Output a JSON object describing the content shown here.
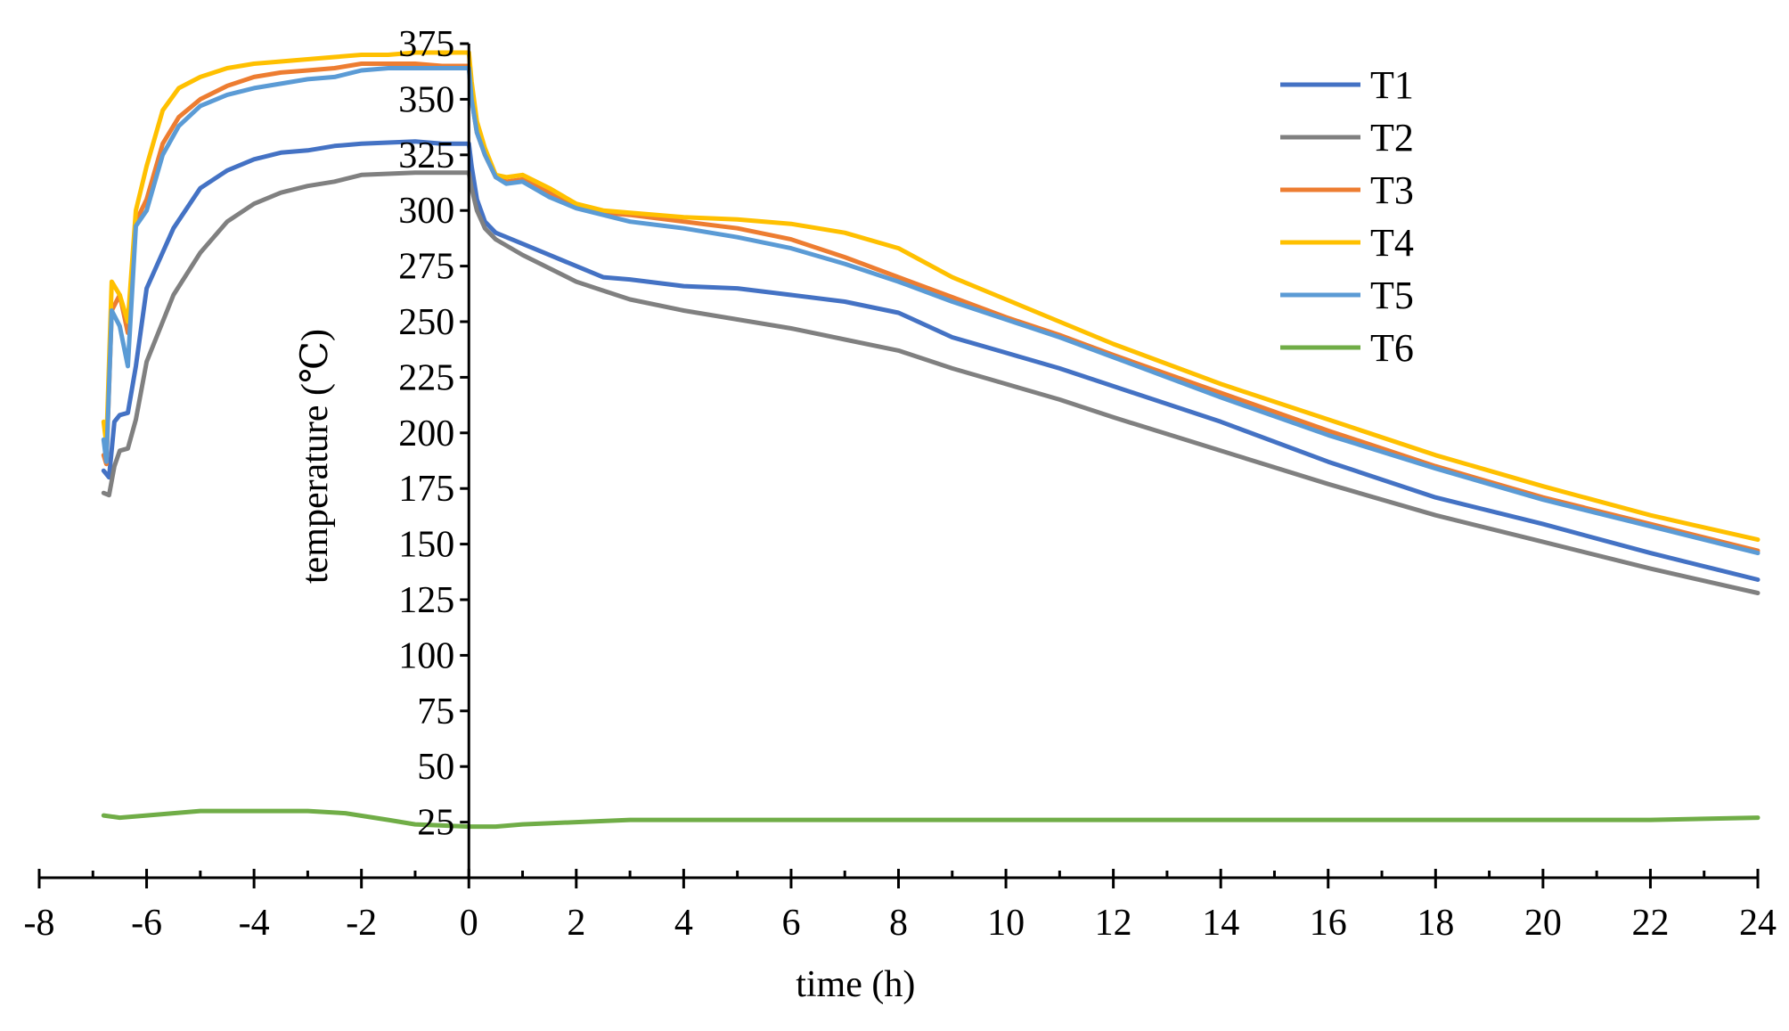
{
  "chart_data": {
    "type": "line",
    "title": "",
    "xlabel": "time (h)",
    "ylabel": "temperature (℃)",
    "xlim": [
      -8,
      24
    ],
    "ylim": [
      0,
      375
    ],
    "x_ticks": [
      -8,
      -6,
      -4,
      -2,
      0,
      2,
      4,
      6,
      8,
      10,
      12,
      14,
      16,
      18,
      20,
      22,
      24
    ],
    "y_ticks": [
      25,
      50,
      75,
      100,
      125,
      150,
      175,
      200,
      225,
      250,
      275,
      300,
      325,
      350,
      375
    ],
    "legend_position": "top-right",
    "series": [
      {
        "name": "T1",
        "color": "#4472C4",
        "points": [
          [
            -6.8,
            183
          ],
          [
            -6.7,
            180
          ],
          [
            -6.6,
            205
          ],
          [
            -6.5,
            208
          ],
          [
            -6.35,
            209
          ],
          [
            -6.2,
            230
          ],
          [
            -6,
            265
          ],
          [
            -5.5,
            292
          ],
          [
            -5,
            310
          ],
          [
            -4.5,
            318
          ],
          [
            -4,
            323
          ],
          [
            -3.5,
            326
          ],
          [
            -3,
            327
          ],
          [
            -2.5,
            329
          ],
          [
            -2,
            330
          ],
          [
            -1,
            331
          ],
          [
            -0.5,
            330
          ],
          [
            0,
            330
          ],
          [
            0.05,
            320
          ],
          [
            0.15,
            305
          ],
          [
            0.3,
            295
          ],
          [
            0.5,
            290
          ],
          [
            1,
            285
          ],
          [
            2,
            275
          ],
          [
            2.5,
            270
          ],
          [
            3,
            269
          ],
          [
            4,
            266
          ],
          [
            5,
            265
          ],
          [
            6,
            262
          ],
          [
            7,
            259
          ],
          [
            8,
            254
          ],
          [
            9,
            243
          ],
          [
            10,
            236
          ],
          [
            11,
            229
          ],
          [
            12,
            221
          ],
          [
            14,
            205
          ],
          [
            16,
            187
          ],
          [
            18,
            171
          ],
          [
            20,
            159
          ],
          [
            22,
            146
          ],
          [
            24,
            134
          ]
        ]
      },
      {
        "name": "T2",
        "color": "#808080",
        "points": [
          [
            -6.8,
            173
          ],
          [
            -6.7,
            172
          ],
          [
            -6.6,
            185
          ],
          [
            -6.5,
            192
          ],
          [
            -6.35,
            193
          ],
          [
            -6.2,
            206
          ],
          [
            -6,
            232
          ],
          [
            -5.5,
            262
          ],
          [
            -5,
            281
          ],
          [
            -4.5,
            295
          ],
          [
            -4,
            303
          ],
          [
            -3.5,
            308
          ],
          [
            -3,
            311
          ],
          [
            -2.5,
            313
          ],
          [
            -2,
            316
          ],
          [
            -1,
            317
          ],
          [
            -0.5,
            317
          ],
          [
            0,
            317
          ],
          [
            0.05,
            310
          ],
          [
            0.15,
            300
          ],
          [
            0.3,
            292
          ],
          [
            0.5,
            287
          ],
          [
            1,
            280
          ],
          [
            2,
            268
          ],
          [
            2.5,
            264
          ],
          [
            3,
            260
          ],
          [
            4,
            255
          ],
          [
            5,
            251
          ],
          [
            6,
            247
          ],
          [
            7,
            242
          ],
          [
            8,
            237
          ],
          [
            9,
            229
          ],
          [
            10,
            222
          ],
          [
            11,
            215
          ],
          [
            12,
            207
          ],
          [
            14,
            192
          ],
          [
            16,
            177
          ],
          [
            18,
            163
          ],
          [
            20,
            151
          ],
          [
            22,
            139
          ],
          [
            24,
            128
          ]
        ]
      },
      {
        "name": "T3",
        "color": "#ED7D31",
        "points": [
          [
            -6.8,
            190
          ],
          [
            -6.75,
            186
          ],
          [
            -6.65,
            255
          ],
          [
            -6.5,
            262
          ],
          [
            -6.35,
            245
          ],
          [
            -6.2,
            295
          ],
          [
            -6,
            305
          ],
          [
            -5.7,
            330
          ],
          [
            -5.4,
            342
          ],
          [
            -5,
            350
          ],
          [
            -4.5,
            356
          ],
          [
            -4,
            360
          ],
          [
            -3.5,
            362
          ],
          [
            -3,
            363
          ],
          [
            -2.5,
            364
          ],
          [
            -2,
            366
          ],
          [
            -1.5,
            366
          ],
          [
            -1,
            366
          ],
          [
            -0.5,
            365
          ],
          [
            0,
            365
          ],
          [
            0.05,
            350
          ],
          [
            0.15,
            335
          ],
          [
            0.3,
            325
          ],
          [
            0.5,
            315
          ],
          [
            0.7,
            313
          ],
          [
            1,
            314
          ],
          [
            1.5,
            308
          ],
          [
            2,
            302
          ],
          [
            2.5,
            299
          ],
          [
            3,
            298
          ],
          [
            4,
            295
          ],
          [
            5,
            292
          ],
          [
            6,
            287
          ],
          [
            7,
            279
          ],
          [
            8,
            270
          ],
          [
            9,
            261
          ],
          [
            10,
            252
          ],
          [
            11,
            244
          ],
          [
            12,
            235
          ],
          [
            14,
            218
          ],
          [
            16,
            201
          ],
          [
            18,
            185
          ],
          [
            20,
            171
          ],
          [
            22,
            159
          ],
          [
            24,
            147
          ]
        ]
      },
      {
        "name": "T4",
        "color": "#FFC000",
        "points": [
          [
            -6.8,
            205
          ],
          [
            -6.75,
            195
          ],
          [
            -6.65,
            268
          ],
          [
            -6.5,
            262
          ],
          [
            -6.35,
            250
          ],
          [
            -6.2,
            300
          ],
          [
            -6,
            320
          ],
          [
            -5.7,
            345
          ],
          [
            -5.4,
            355
          ],
          [
            -5,
            360
          ],
          [
            -4.5,
            364
          ],
          [
            -4,
            366
          ],
          [
            -3.5,
            367
          ],
          [
            -3,
            368
          ],
          [
            -2.5,
            369
          ],
          [
            -2,
            370
          ],
          [
            -1.5,
            370
          ],
          [
            -1,
            371
          ],
          [
            -0.5,
            371
          ],
          [
            0,
            371
          ],
          [
            0.05,
            358
          ],
          [
            0.15,
            340
          ],
          [
            0.3,
            328
          ],
          [
            0.5,
            316
          ],
          [
            0.7,
            315
          ],
          [
            1,
            316
          ],
          [
            1.5,
            310
          ],
          [
            2,
            303
          ],
          [
            2.5,
            300
          ],
          [
            3,
            299
          ],
          [
            4,
            297
          ],
          [
            5,
            296
          ],
          [
            6,
            294
          ],
          [
            7,
            290
          ],
          [
            8,
            283
          ],
          [
            9,
            270
          ],
          [
            10,
            260
          ],
          [
            11,
            250
          ],
          [
            12,
            240
          ],
          [
            14,
            222
          ],
          [
            16,
            206
          ],
          [
            18,
            190
          ],
          [
            20,
            176
          ],
          [
            22,
            163
          ],
          [
            24,
            152
          ]
        ]
      },
      {
        "name": "T5",
        "color": "#5B9BD5",
        "points": [
          [
            -6.8,
            197
          ],
          [
            -6.75,
            187
          ],
          [
            -6.65,
            255
          ],
          [
            -6.5,
            248
          ],
          [
            -6.35,
            230
          ],
          [
            -6.2,
            293
          ],
          [
            -6,
            300
          ],
          [
            -5.7,
            325
          ],
          [
            -5.4,
            338
          ],
          [
            -5,
            347
          ],
          [
            -4.5,
            352
          ],
          [
            -4,
            355
          ],
          [
            -3.5,
            357
          ],
          [
            -3,
            359
          ],
          [
            -2.5,
            360
          ],
          [
            -2,
            363
          ],
          [
            -1.5,
            364
          ],
          [
            -1,
            364
          ],
          [
            -0.5,
            364
          ],
          [
            0,
            364
          ],
          [
            0.05,
            350
          ],
          [
            0.15,
            335
          ],
          [
            0.3,
            325
          ],
          [
            0.5,
            315
          ],
          [
            0.7,
            312
          ],
          [
            1,
            313
          ],
          [
            1.5,
            306
          ],
          [
            2,
            301
          ],
          [
            2.5,
            298
          ],
          [
            3,
            295
          ],
          [
            4,
            292
          ],
          [
            5,
            288
          ],
          [
            6,
            283
          ],
          [
            7,
            276
          ],
          [
            8,
            268
          ],
          [
            9,
            259
          ],
          [
            10,
            251
          ],
          [
            11,
            243
          ],
          [
            12,
            234
          ],
          [
            14,
            216
          ],
          [
            16,
            199
          ],
          [
            18,
            184
          ],
          [
            20,
            170
          ],
          [
            22,
            158
          ],
          [
            24,
            146
          ]
        ]
      },
      {
        "name": "T6",
        "color": "#70AD47",
        "points": [
          [
            -6.8,
            28
          ],
          [
            -6.5,
            27
          ],
          [
            -6,
            28
          ],
          [
            -5,
            30
          ],
          [
            -4,
            30
          ],
          [
            -3,
            30
          ],
          [
            -2.3,
            29
          ],
          [
            -1.5,
            26
          ],
          [
            -1,
            24
          ],
          [
            0,
            23
          ],
          [
            0.5,
            23
          ],
          [
            1,
            24
          ],
          [
            2,
            25
          ],
          [
            3,
            26
          ],
          [
            4,
            26
          ],
          [
            6,
            26
          ],
          [
            8,
            26
          ],
          [
            10,
            26
          ],
          [
            12,
            26
          ],
          [
            14,
            26
          ],
          [
            16,
            26
          ],
          [
            18,
            26
          ],
          [
            20,
            26
          ],
          [
            22,
            26
          ],
          [
            24,
            27
          ]
        ]
      }
    ]
  }
}
